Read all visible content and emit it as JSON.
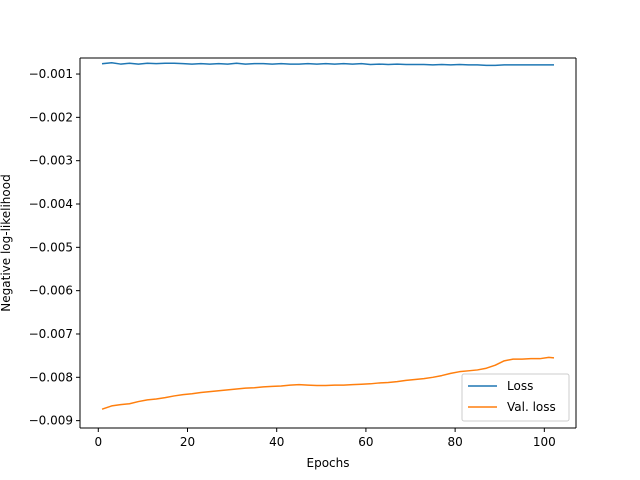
{
  "chart_data": {
    "type": "line",
    "title": "",
    "xlabel": "Epochs",
    "ylabel": "Negative log-likelihood",
    "xlim": [
      -4.1,
      107.1
    ],
    "ylim": [
      -0.00917,
      -0.00063
    ],
    "xticks": [
      0,
      20,
      40,
      60,
      80,
      100
    ],
    "xtick_labels": [
      "0",
      "20",
      "40",
      "60",
      "80",
      "100"
    ],
    "yticks": [
      -0.009,
      -0.008,
      -0.007,
      -0.006,
      -0.005,
      -0.004,
      -0.003,
      -0.002,
      -0.001
    ],
    "ytick_labels": [
      "−0.009",
      "−0.008",
      "−0.007",
      "−0.006",
      "−0.005",
      "−0.004",
      "−0.003",
      "−0.002",
      "−0.001"
    ],
    "grid": false,
    "legend_position": "lower-right",
    "series": [
      {
        "name": "Loss",
        "color": "#1f77b4",
        "x": [
          1,
          3,
          5,
          7,
          9,
          11,
          13,
          15,
          17,
          19,
          21,
          23,
          25,
          27,
          29,
          31,
          33,
          35,
          37,
          39,
          41,
          43,
          45,
          47,
          49,
          51,
          53,
          55,
          57,
          59,
          61,
          63,
          65,
          67,
          69,
          71,
          73,
          75,
          77,
          79,
          81,
          83,
          85,
          87,
          89,
          91,
          93,
          95,
          97,
          99,
          101,
          102
        ],
        "y": [
          -0.00076,
          -0.00074,
          -0.00077,
          -0.00075,
          -0.00077,
          -0.00075,
          -0.00076,
          -0.00075,
          -0.00075,
          -0.00076,
          -0.00077,
          -0.00076,
          -0.00077,
          -0.00076,
          -0.00077,
          -0.00075,
          -0.00077,
          -0.00076,
          -0.00076,
          -0.00077,
          -0.00076,
          -0.00077,
          -0.00077,
          -0.00076,
          -0.00077,
          -0.00076,
          -0.00077,
          -0.00076,
          -0.00077,
          -0.00076,
          -0.00078,
          -0.00077,
          -0.00078,
          -0.00077,
          -0.00078,
          -0.00078,
          -0.00078,
          -0.00079,
          -0.00078,
          -0.00079,
          -0.00078,
          -0.00079,
          -0.00079,
          -0.0008,
          -0.0008,
          -0.00079,
          -0.00079,
          -0.00079,
          -0.00079,
          -0.00079,
          -0.00079,
          -0.00079
        ]
      },
      {
        "name": "Val. loss",
        "color": "#ff7f0e",
        "x": [
          1,
          3,
          5,
          7,
          9,
          11,
          13,
          15,
          17,
          19,
          21,
          23,
          25,
          27,
          29,
          31,
          33,
          35,
          37,
          39,
          41,
          43,
          45,
          47,
          49,
          51,
          53,
          55,
          57,
          59,
          61,
          63,
          65,
          67,
          69,
          71,
          73,
          75,
          77,
          79,
          81,
          83,
          85,
          87,
          89,
          91,
          93,
          95,
          97,
          99,
          101,
          102
        ],
        "y": [
          -0.00873,
          -0.00866,
          -0.00863,
          -0.00861,
          -0.00856,
          -0.00852,
          -0.0085,
          -0.00847,
          -0.00843,
          -0.0084,
          -0.00838,
          -0.00835,
          -0.00833,
          -0.00831,
          -0.00829,
          -0.00827,
          -0.00825,
          -0.00824,
          -0.00822,
          -0.00821,
          -0.0082,
          -0.00818,
          -0.00817,
          -0.00818,
          -0.00819,
          -0.00819,
          -0.00818,
          -0.00818,
          -0.00817,
          -0.00816,
          -0.00815,
          -0.00813,
          -0.00812,
          -0.0081,
          -0.00807,
          -0.00805,
          -0.00803,
          -0.008,
          -0.00796,
          -0.00791,
          -0.00787,
          -0.00785,
          -0.00783,
          -0.00779,
          -0.00772,
          -0.00762,
          -0.00758,
          -0.00758,
          -0.00757,
          -0.00757,
          -0.00754,
          -0.00755
        ]
      }
    ]
  }
}
